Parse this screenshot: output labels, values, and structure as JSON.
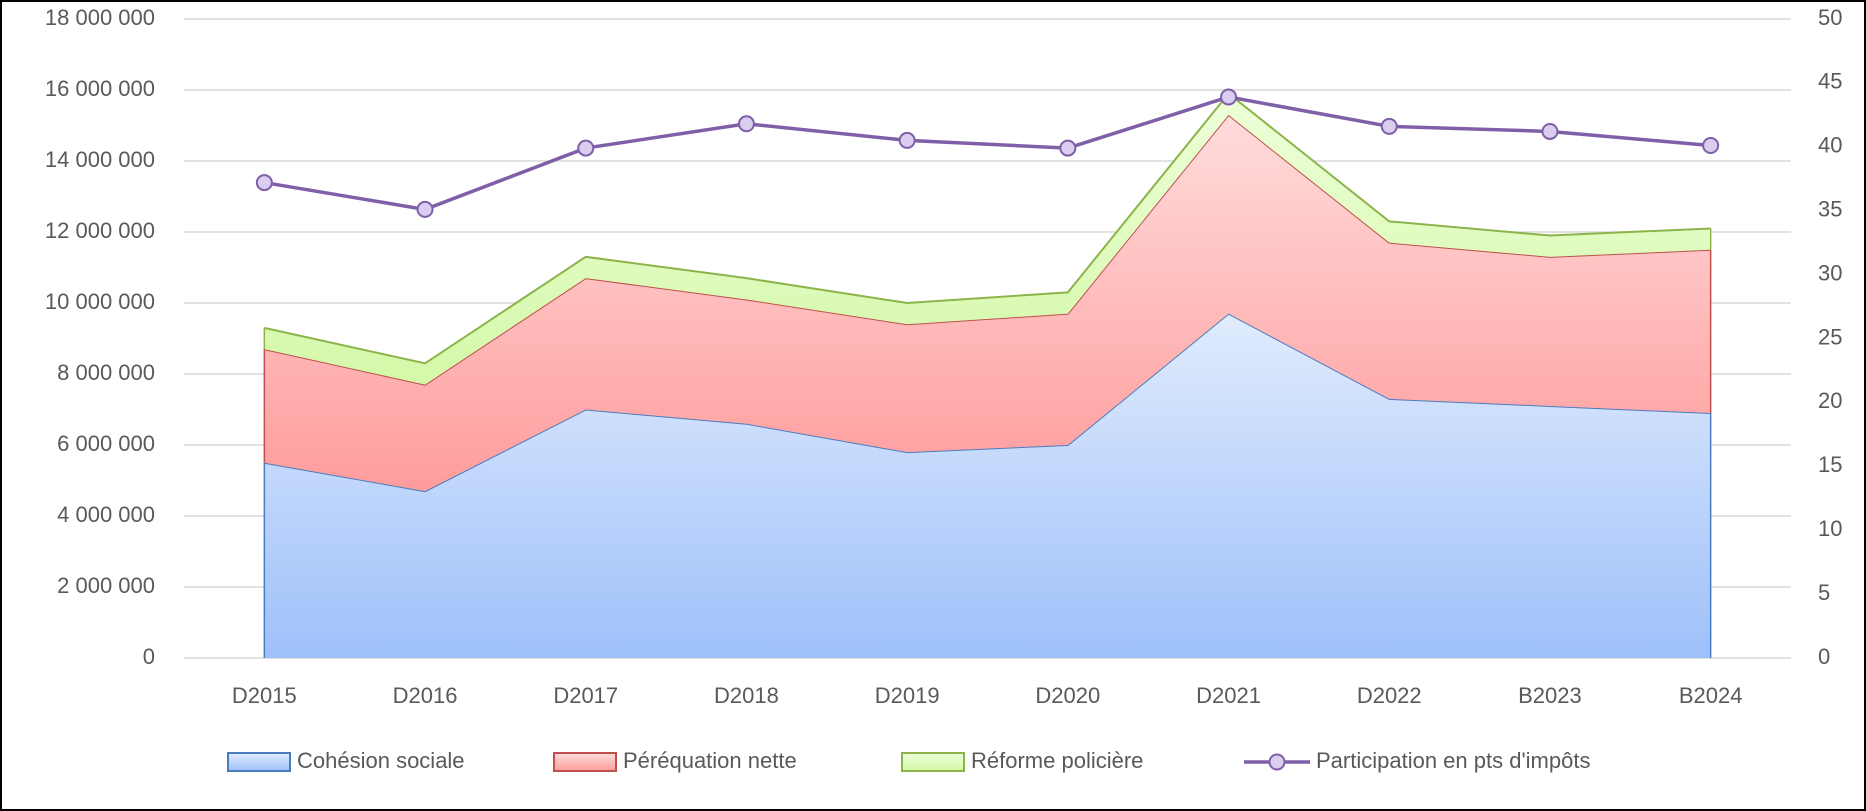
{
  "chart_data": {
    "type": "stacked_area_line",
    "categories": [
      "D2015",
      "D2016",
      "D2017",
      "D2018",
      "D2019",
      "D2020",
      "D2021",
      "D2022",
      "B2023",
      "B2024"
    ],
    "series": [
      {
        "name": "Cohésion sociale",
        "color": "#4a7cc0",
        "values": [
          5500000,
          4700000,
          7000000,
          6600000,
          5800000,
          6000000,
          9700000,
          7300000,
          7100000,
          6900000
        ]
      },
      {
        "name": "Péréquation nette",
        "color": "#c0504d",
        "values": [
          3200000,
          3000000,
          3700000,
          3500000,
          3600000,
          3700000,
          5600000,
          4400000,
          4200000,
          4600000
        ]
      },
      {
        "name": "Réforme policière",
        "color": "#8cb44a",
        "values": [
          600000,
          600000,
          600000,
          600000,
          600000,
          600000,
          600000,
          600000,
          600000,
          600000
        ]
      },
      {
        "name": "Participation en pts d'impôts",
        "color": "#7f5fa8",
        "axis": "y2",
        "values": [
          37.2,
          35.1,
          39.9,
          41.8,
          40.5,
          39.9,
          43.9,
          41.6,
          41.2,
          40.1
        ]
      }
    ],
    "ylim": [
      0,
      18000000
    ],
    "yticks": [
      0,
      {
        "value": 2000000,
        "label": "2 000 000"
      },
      {
        "value": 4000000,
        "label": "4 000 000"
      },
      {
        "value": 6000000,
        "label": "6 000 000"
      },
      {
        "value": 8000000,
        "label": "8 000 000"
      },
      {
        "value": 10000000,
        "label": "10 000 000"
      },
      {
        "value": 12000000,
        "label": "12 000 000"
      },
      {
        "value": 14000000,
        "label": "14 000 000"
      },
      {
        "value": 16000000,
        "label": "16 000 000"
      },
      {
        "value": 18000000,
        "label": "18 000 000"
      }
    ],
    "y2lim": [
      0,
      50
    ],
    "y2ticks": [
      0,
      5,
      10,
      15,
      20,
      25,
      30,
      35,
      40,
      45,
      50
    ],
    "grid": true,
    "legend": "bottom"
  }
}
